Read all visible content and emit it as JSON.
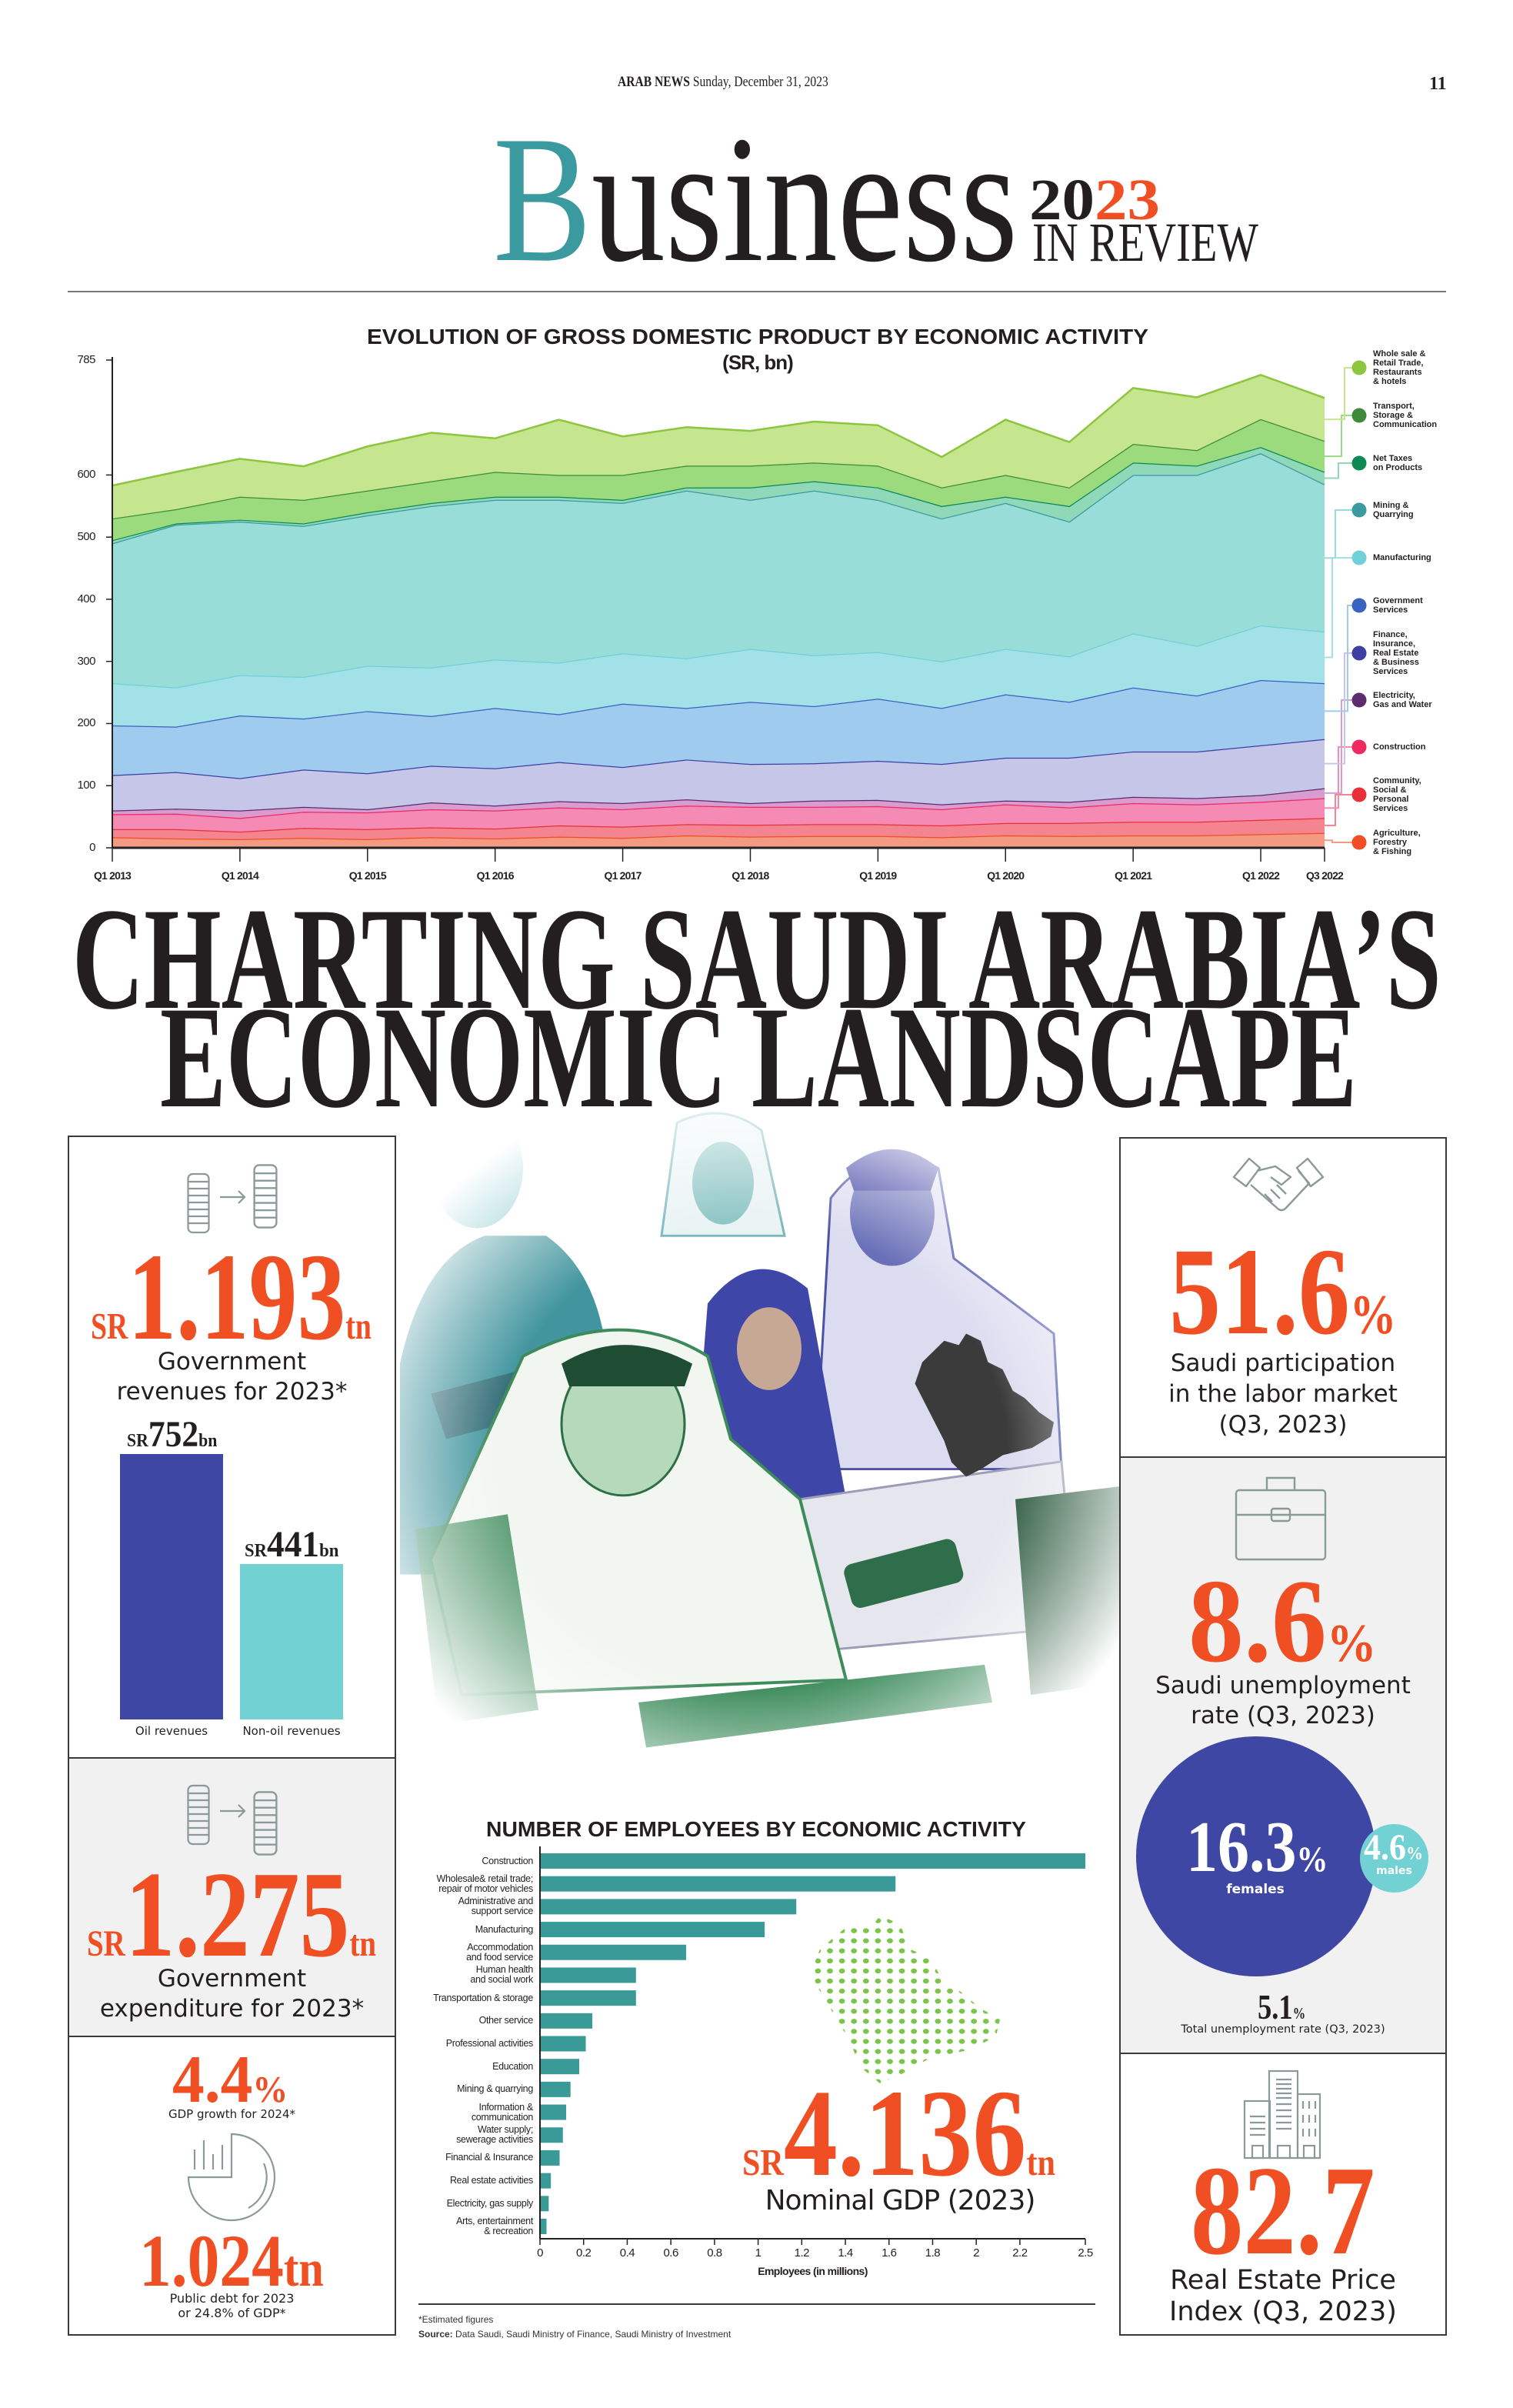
{
  "masthead": {
    "publication": "ARAB NEWS",
    "date": "Sunday, December 31, 2023",
    "page_number": "11"
  },
  "section_title": {
    "word_initial": "B",
    "word_rest": "usiness",
    "year_black": "20",
    "year_red": "23",
    "subtitle": "IN REVIEW"
  },
  "headline": {
    "line1": "CHARTING SAUDI ARABIA’S",
    "line2": "ECONOMIC LANDSCAPE"
  },
  "colors": {
    "accent_red": "#f04e23",
    "brand_teal": "#3a9aa0",
    "oil_bar": "#3e47a3",
    "non_oil_bar": "#72d1d3",
    "icon_gray": "#8a9a98",
    "panel_gray": "#f1f1f1"
  },
  "stats": {
    "revenues": {
      "prefix": "SR",
      "value": "1.193",
      "unit": "tn",
      "label": "Government\nrevenues for 2023*",
      "icon": "coin-stack-grow-icon"
    },
    "expenditure": {
      "prefix": "SR",
      "value": "1.275",
      "unit": "tn",
      "label": "Government\nexpenditure for 2023*",
      "icon": "coin-stack-shrink-icon"
    },
    "gdp_growth": {
      "value": "4.4",
      "unit": "%",
      "label": "GDP growth for 2024*",
      "icon": "pie-chart-icon"
    },
    "public_debt": {
      "value": "1.024",
      "unit": "tn",
      "label": "Public debt for 2023\nor 24.8% of GDP*"
    },
    "labor_participation": {
      "value": "51.6",
      "unit": "%",
      "label": "Saudi participation\nin the labor market\n(Q3, 2023)",
      "icon": "handshake-icon"
    },
    "unemployment": {
      "value": "8.6",
      "unit": "%",
      "label": "Saudi unemployment\nrate (Q3, 2023)",
      "icon": "briefcase-icon"
    },
    "unemployment_females": {
      "value": "16.3",
      "unit": "%",
      "label": "females"
    },
    "unemployment_males": {
      "value": "4.6",
      "unit": "%",
      "label": "males"
    },
    "unemployment_total": {
      "value": "5.1",
      "unit": "%",
      "label": "Total unemployment rate (Q3, 2023)"
    },
    "real_estate": {
      "value": "82.7",
      "label": "Real Estate Price\nIndex (Q3, 2023)",
      "icon": "buildings-icon"
    },
    "nominal_gdp": {
      "prefix": "SR",
      "value": "4.136",
      "unit": "tn",
      "label": "Nominal GDP (2023)"
    }
  },
  "chart_data": [
    {
      "type": "area",
      "stacked": true,
      "title": "EVOLUTION OF GROSS DOMESTIC PRODUCT BY ECONOMIC ACTIVITY",
      "subtitle": "(SR, bn)",
      "xlabel": "",
      "ylabel": "",
      "ylim": [
        0,
        785
      ],
      "yticks": [
        0,
        100,
        200,
        300,
        400,
        500,
        600,
        785
      ],
      "x": [
        "Q1 2013",
        "Q3 2013",
        "Q1 2014",
        "Q3 2014",
        "Q1 2015",
        "Q3 2015",
        "Q1 2016",
        "Q3 2016",
        "Q1 2017",
        "Q3 2017",
        "Q1 2018",
        "Q3 2018",
        "Q1 2019",
        "Q3 2019",
        "Q1 2020",
        "Q3 2020",
        "Q1 2021",
        "Q3 2021",
        "Q1 2022",
        "Q3 2022"
      ],
      "xtick_labels": [
        "Q1 2013",
        "Q1 2014",
        "Q1 2015",
        "Q1 2016",
        "Q1 2017",
        "Q1 2018",
        "Q1 2019",
        "Q1 2020",
        "Q1 2021",
        "Q1 2022",
        "Q3 2022"
      ],
      "legend_position": "right",
      "grid": false,
      "series": [
        {
          "name": "Agriculture,\nForestry\n& Fishing",
          "color": "#f04e23",
          "fill": "#f59a82",
          "values": [
            17,
            15,
            14,
            16,
            14,
            17,
            15,
            18,
            16,
            20,
            18,
            19,
            19,
            17,
            20,
            19,
            20,
            20,
            22,
            24
          ]
        },
        {
          "name": "Community,\nSocial &\nPersonal\nServices",
          "color": "#e8303a",
          "fill": "#f4848f",
          "values": [
            13,
            15,
            12,
            16,
            16,
            16,
            16,
            18,
            18,
            18,
            19,
            19,
            19,
            19,
            20,
            21,
            22,
            22,
            23,
            24
          ]
        },
        {
          "name": "Construction",
          "color": "#ee2a62",
          "fill": "#f58bb5",
          "values": [
            24,
            25,
            22,
            26,
            27,
            29,
            29,
            29,
            28,
            30,
            29,
            28,
            29,
            26,
            30,
            25,
            30,
            28,
            29,
            32
          ]
        },
        {
          "name": "Electricity,\nGas and Water",
          "color": "#5b2d6e",
          "fill": "#d99bd0",
          "values": [
            6,
            8,
            12,
            8,
            5,
            11,
            8,
            10,
            10,
            10,
            6,
            10,
            10,
            8,
            6,
            9,
            10,
            10,
            11,
            16
          ]
        },
        {
          "name": "Finance,\nInsurance,\nReal Estate\n& Business\nServices",
          "color": "#3e3fa3",
          "fill": "#c5c6e8",
          "values": [
            57,
            59,
            52,
            60,
            58,
            59,
            60,
            63,
            58,
            64,
            63,
            60,
            63,
            65,
            69,
            71,
            73,
            75,
            80,
            79
          ]
        },
        {
          "name": "Government\nServices",
          "color": "#3a62c0",
          "fill": "#9ecbee",
          "values": [
            80,
            73,
            101,
            82,
            100,
            80,
            97,
            77,
            102,
            83,
            100,
            92,
            100,
            90,
            102,
            90,
            103,
            90,
            105,
            90
          ]
        },
        {
          "name": "Manufacturing",
          "color": "#70d0d8",
          "fill": "#a3e1e8",
          "values": [
            68,
            63,
            65,
            67,
            73,
            78,
            78,
            83,
            81,
            80,
            85,
            82,
            75,
            75,
            73,
            73,
            87,
            80,
            88,
            83
          ]
        },
        {
          "name": "Mining &\nQuarrying",
          "color": "#3a9aa0",
          "fill": "#99ddd9",
          "values": [
            225,
            262,
            247,
            243,
            242,
            260,
            257,
            262,
            242,
            270,
            240,
            265,
            245,
            230,
            235,
            217,
            255,
            275,
            277,
            237
          ]
        },
        {
          "name": "Net Taxes\non Products",
          "color": "#0c8a55",
          "fill": "#8fd8b8",
          "values": [
            5,
            2,
            3,
            4,
            5,
            5,
            5,
            5,
            5,
            5,
            20,
            15,
            20,
            20,
            10,
            25,
            20,
            15,
            10,
            20
          ]
        },
        {
          "name": "Transport,\nStorage &\nCommunication",
          "color": "#3f8a3a",
          "fill": "#9bdb7e",
          "values": [
            35,
            23,
            37,
            38,
            35,
            35,
            40,
            35,
            40,
            35,
            35,
            30,
            35,
            30,
            35,
            30,
            30,
            25,
            45,
            50
          ]
        },
        {
          "name": "Whole sale &\nRetail Trade,\nRestaurants\n& hotels",
          "color": "#8cc63f",
          "fill": "#c5e68f",
          "values": [
            53,
            60,
            61,
            54,
            71,
            78,
            54,
            89,
            62,
            62,
            56,
            66,
            65,
            49,
            89,
            73,
            90,
            85,
            71,
            69
          ]
        }
      ]
    },
    {
      "type": "bar",
      "orientation": "horizontal",
      "title": "NUMBER OF EMPLOYEES BY ECONOMIC ACTIVITY",
      "xlabel": "Employees (in millions)",
      "xlim": [
        0,
        2.5
      ],
      "xticks": [
        "0",
        "0.2",
        "0.4",
        "0.6",
        "0.8",
        "1",
        "1.2",
        "1.4",
        "1.6",
        "1.8",
        "2",
        "2.2",
        "2.5"
      ],
      "color": "#3a9a98",
      "categories": [
        "Construction",
        "Wholesale& retail trade;\nrepair of motor vehicles",
        "Administrative and\nsupport service",
        "Manufacturing",
        "Accommodation\nand food service",
        "Human health\nand social work",
        "Transportation & storage",
        "Other service",
        "Professional activities",
        "Education",
        "Mining & quarrying",
        "Information &\ncommunication",
        "Water supply;\nsewerage activities",
        "Financial & Insurance",
        "Real estate activities",
        "Electricity, gas supply",
        "Arts, entertainment\n& recreation"
      ],
      "values": [
        2.5,
        1.63,
        1.175,
        1.03,
        0.67,
        0.44,
        0.44,
        0.24,
        0.21,
        0.18,
        0.14,
        0.12,
        0.105,
        0.09,
        0.05,
        0.04,
        0.03
      ]
    },
    {
      "type": "bar",
      "title": "",
      "xlabel": "",
      "ylabel": "",
      "categories": [
        "Oil revenues",
        "Non-oil revenues"
      ],
      "values": [
        752,
        441
      ],
      "data_labels": [
        {
          "prefix": "SR",
          "value": "752",
          "unit": "bn"
        },
        {
          "prefix": "SR",
          "value": "441",
          "unit": "bn"
        }
      ],
      "colors": [
        "#3e47a3",
        "#72d1d3"
      ]
    }
  ],
  "footer": {
    "note": "*Estimated figures",
    "source_label": "Source:",
    "source_text": " Data Saudi, Saudi Ministry of Finance, Saudi Ministry of Investment"
  }
}
